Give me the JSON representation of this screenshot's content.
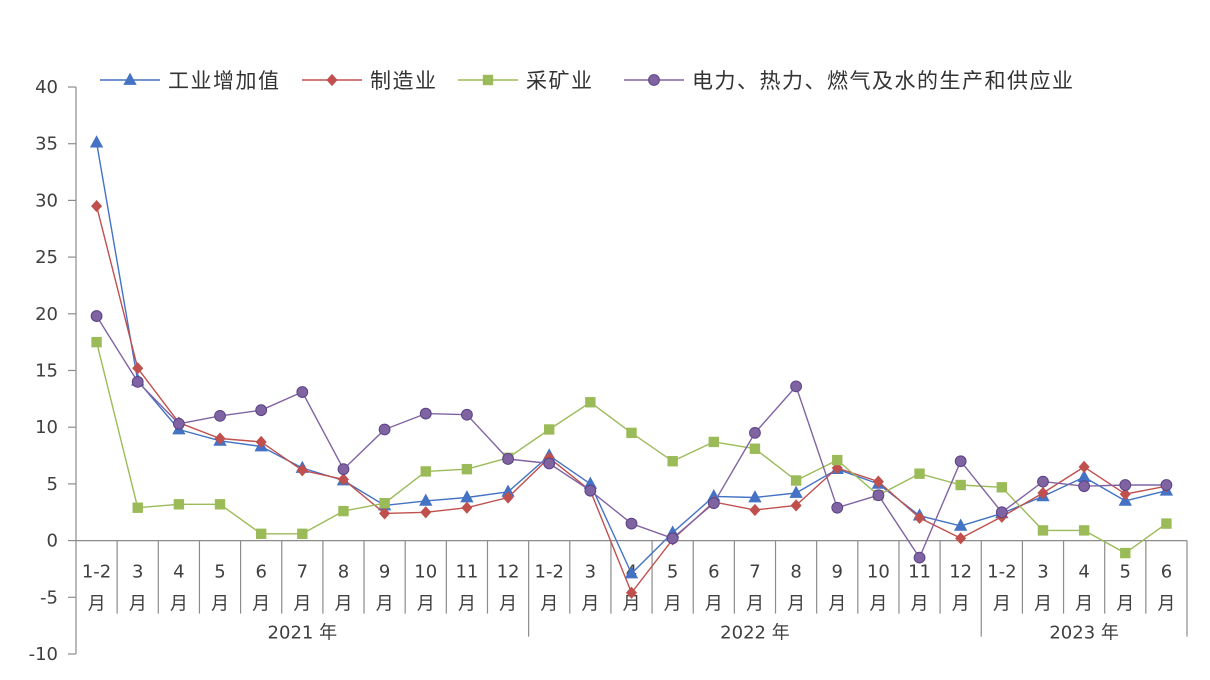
{
  "chart_data": {
    "type": "line",
    "title": "",
    "xlabel": "",
    "ylabel": "",
    "ylim": [
      -10,
      40
    ],
    "yticks": [
      40,
      35,
      30,
      25,
      20,
      15,
      10,
      5,
      0,
      -5,
      -10
    ],
    "grid": false,
    "legend_position": "top",
    "groups": [
      {
        "label": "2021 年",
        "categories": [
          "1-2月",
          "3月",
          "4月",
          "5月",
          "6月",
          "7月",
          "8月",
          "9月",
          "10月",
          "11月",
          "12月"
        ]
      },
      {
        "label": "2022 年",
        "categories": [
          "1-2月",
          "3月",
          "4月",
          "5月",
          "6月",
          "7月",
          "8月",
          "9月",
          "10月",
          "11月",
          "12月"
        ]
      },
      {
        "label": "2023 年",
        "categories": [
          "1-2月",
          "3月",
          "4月",
          "5月",
          "6月"
        ]
      }
    ],
    "series": [
      {
        "name": "工业增加值",
        "color": "#4472C4",
        "marker": "triangle",
        "values": [
          35.1,
          14.1,
          9.8,
          8.8,
          8.3,
          6.4,
          5.3,
          3.1,
          3.5,
          3.8,
          4.3,
          7.5,
          5.0,
          -2.9,
          0.7,
          3.9,
          3.8,
          4.2,
          6.3,
          5.0,
          2.2,
          1.3,
          2.4,
          3.9,
          5.6,
          3.5,
          4.4
        ]
      },
      {
        "name": "制造业",
        "color": "#C0504D",
        "marker": "diamond",
        "values": [
          29.5,
          15.2,
          10.4,
          9.0,
          8.7,
          6.2,
          5.4,
          2.4,
          2.5,
          2.9,
          3.8,
          7.3,
          4.4,
          -4.6,
          0.1,
          3.4,
          2.7,
          3.1,
          6.4,
          5.2,
          2.0,
          0.2,
          2.1,
          4.2,
          6.5,
          4.1,
          4.8
        ]
      },
      {
        "name": "采矿业",
        "color": "#9BBB59",
        "marker": "square",
        "values": [
          17.5,
          2.9,
          3.2,
          3.2,
          0.6,
          0.6,
          2.6,
          3.3,
          6.1,
          6.3,
          7.3,
          9.8,
          12.2,
          9.5,
          7.0,
          8.7,
          8.1,
          5.3,
          7.1,
          4.0,
          5.9,
          4.9,
          4.7,
          0.9,
          0.9,
          -1.1,
          1.5
        ]
      },
      {
        "name": "电力、热力、燃气及水的生产和供应业",
        "color": "#8064A2",
        "marker": "circle",
        "values": [
          19.8,
          14.0,
          10.3,
          11.0,
          11.5,
          13.1,
          6.3,
          9.8,
          11.2,
          11.1,
          7.2,
          6.8,
          4.4,
          1.5,
          0.2,
          3.3,
          9.5,
          13.6,
          2.9,
          4.0,
          -1.5,
          7.0,
          2.5,
          5.2,
          4.8,
          4.9,
          4.9
        ]
      }
    ]
  }
}
